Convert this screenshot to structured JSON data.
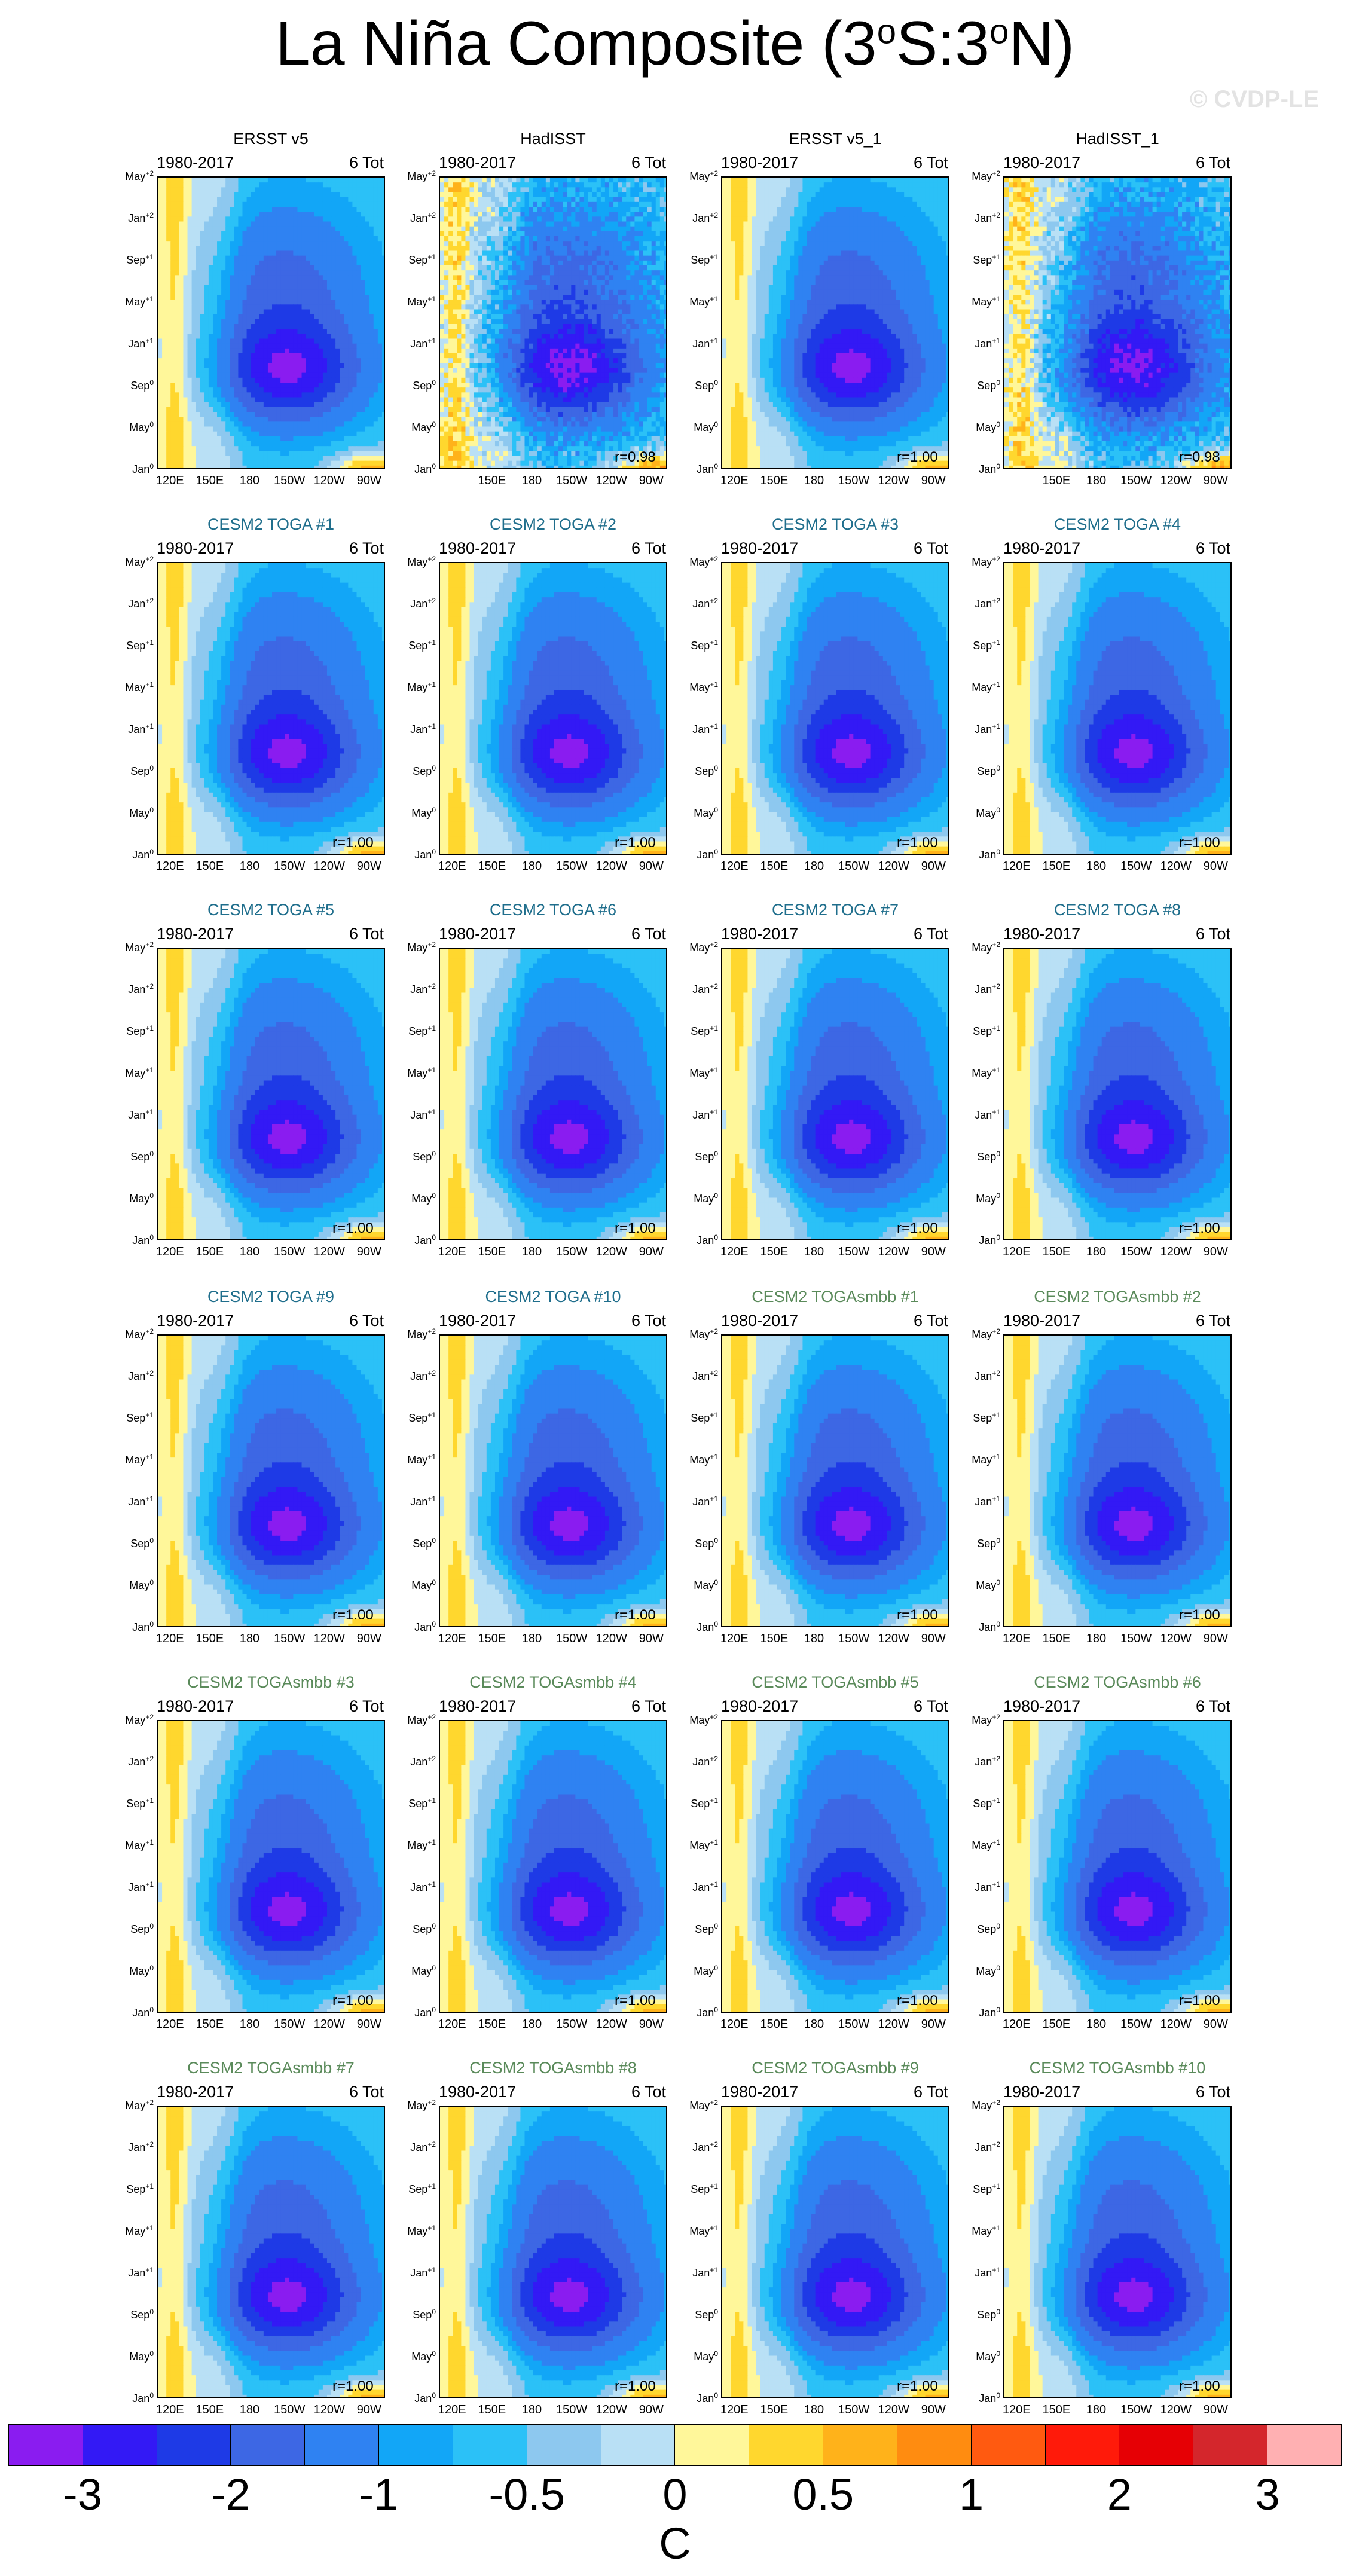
{
  "page": {
    "title_main": "La Niña Composite (3",
    "title_sup1": "o",
    "title_mid": "S:3",
    "title_sup2": "o",
    "title_end": "N)",
    "watermark": "© CVDP-LE"
  },
  "colors": {
    "observation_title": "#000000",
    "toga_title": "#1f6e8c",
    "togasmbb_title": "#5a8a5a"
  },
  "chart_data": {
    "type": "heatmap",
    "description_kind": "Hovmoller longitude-time composite, 24 panels (4 columns x 6 rows)",
    "period": "1980-2017",
    "event_count_label": "6 Tot",
    "y_tick_labels": [
      "May",
      "Jan",
      "Sep",
      "May",
      "Jan",
      "Sep",
      "May",
      "Jan"
    ],
    "y_tick_superscripts": [
      "+2",
      "+2",
      "+1",
      "+1",
      "+1",
      "0",
      "0",
      "0"
    ],
    "x_tick_labels_full": [
      "120E",
      "150E",
      "180",
      "150W",
      "120W",
      "90W"
    ],
    "x_tick_labels_short": [
      "150E",
      "180",
      "150W",
      "120W",
      "90W"
    ],
    "x_tick_lon": [
      120,
      150,
      180,
      210,
      240,
      270
    ],
    "x_range_lon": [
      110,
      282
    ],
    "panels": [
      {
        "title": "ERSST v5",
        "group": "obs",
        "r": "",
        "xlabels": "full",
        "noisy": false
      },
      {
        "title": "HadISST",
        "group": "obs",
        "r": "r=0.98",
        "xlabels": "short",
        "noisy": true
      },
      {
        "title": "ERSST v5_1",
        "group": "obs",
        "r": "r=1.00",
        "xlabels": "full",
        "noisy": false
      },
      {
        "title": "HadISST_1",
        "group": "obs",
        "r": "r=0.98",
        "xlabels": "short",
        "noisy": true
      },
      {
        "title": "CESM2 TOGA #1",
        "group": "toga",
        "r": "r=1.00",
        "xlabels": "full",
        "noisy": false
      },
      {
        "title": "CESM2 TOGA #2",
        "group": "toga",
        "r": "r=1.00",
        "xlabels": "full",
        "noisy": false
      },
      {
        "title": "CESM2 TOGA #3",
        "group": "toga",
        "r": "r=1.00",
        "xlabels": "full",
        "noisy": false
      },
      {
        "title": "CESM2 TOGA #4",
        "group": "toga",
        "r": "r=1.00",
        "xlabels": "full",
        "noisy": false
      },
      {
        "title": "CESM2 TOGA #5",
        "group": "toga",
        "r": "r=1.00",
        "xlabels": "full",
        "noisy": false
      },
      {
        "title": "CESM2 TOGA #6",
        "group": "toga",
        "r": "r=1.00",
        "xlabels": "full",
        "noisy": false
      },
      {
        "title": "CESM2 TOGA #7",
        "group": "toga",
        "r": "r=1.00",
        "xlabels": "full",
        "noisy": false
      },
      {
        "title": "CESM2 TOGA #8",
        "group": "toga",
        "r": "r=1.00",
        "xlabels": "full",
        "noisy": false
      },
      {
        "title": "CESM2 TOGA #9",
        "group": "toga",
        "r": "r=1.00",
        "xlabels": "full",
        "noisy": false
      },
      {
        "title": "CESM2 TOGA #10",
        "group": "toga",
        "r": "r=1.00",
        "xlabels": "full",
        "noisy": false
      },
      {
        "title": "CESM2 TOGAsmbb #1",
        "group": "togasmbb",
        "r": "r=1.00",
        "xlabels": "full",
        "noisy": false
      },
      {
        "title": "CESM2 TOGAsmbb #2",
        "group": "togasmbb",
        "r": "r=1.00",
        "xlabels": "full",
        "noisy": false
      },
      {
        "title": "CESM2 TOGAsmbb #3",
        "group": "togasmbb",
        "r": "r=1.00",
        "xlabels": "full",
        "noisy": false
      },
      {
        "title": "CESM2 TOGAsmbb #4",
        "group": "togasmbb",
        "r": "r=1.00",
        "xlabels": "full",
        "noisy": false
      },
      {
        "title": "CESM2 TOGAsmbb #5",
        "group": "togasmbb",
        "r": "r=1.00",
        "xlabels": "full",
        "noisy": false
      },
      {
        "title": "CESM2 TOGAsmbb #6",
        "group": "togasmbb",
        "r": "r=1.00",
        "xlabels": "full",
        "noisy": false
      },
      {
        "title": "CESM2 TOGAsmbb #7",
        "group": "togasmbb",
        "r": "r=1.00",
        "xlabels": "full",
        "noisy": false
      },
      {
        "title": "CESM2 TOGAsmbb #8",
        "group": "togasmbb",
        "r": "r=1.00",
        "xlabels": "full",
        "noisy": false
      },
      {
        "title": "CESM2 TOGAsmbb #9",
        "group": "togasmbb",
        "r": "r=1.00",
        "xlabels": "full",
        "noisy": false
      },
      {
        "title": "CESM2 TOGAsmbb #10",
        "group": "togasmbb",
        "r": "r=1.00",
        "xlabels": "full",
        "noisy": false
      }
    ],
    "colorbar": {
      "levels": [
        -3,
        -2.5,
        -2,
        -1.5,
        -1,
        -0.75,
        -0.5,
        -0.25,
        0,
        0.25,
        0.5,
        0.75,
        1,
        1.5,
        2,
        2.5,
        3
      ],
      "colors": [
        "#8a1cf0",
        "#3319f5",
        "#1e3ae6",
        "#3d67e4",
        "#2f82f2",
        "#12a6f7",
        "#2bc1f7",
        "#8dc8ef",
        "#b9e0f5",
        "#fff79a",
        "#ffd72e",
        "#ffb21a",
        "#ff8c10",
        "#ff5a10",
        "#ff1a0a",
        "#e60005",
        "#d4262c",
        "#ffb0b2"
      ],
      "tick_labels": [
        "-3",
        "-2",
        "-1",
        "-0.5",
        "0",
        "0.5",
        "1",
        "2",
        "3"
      ],
      "tick_levels": [
        -3,
        -2,
        -1,
        -0.5,
        0,
        0.5,
        1,
        2,
        3
      ],
      "units": "C"
    }
  }
}
